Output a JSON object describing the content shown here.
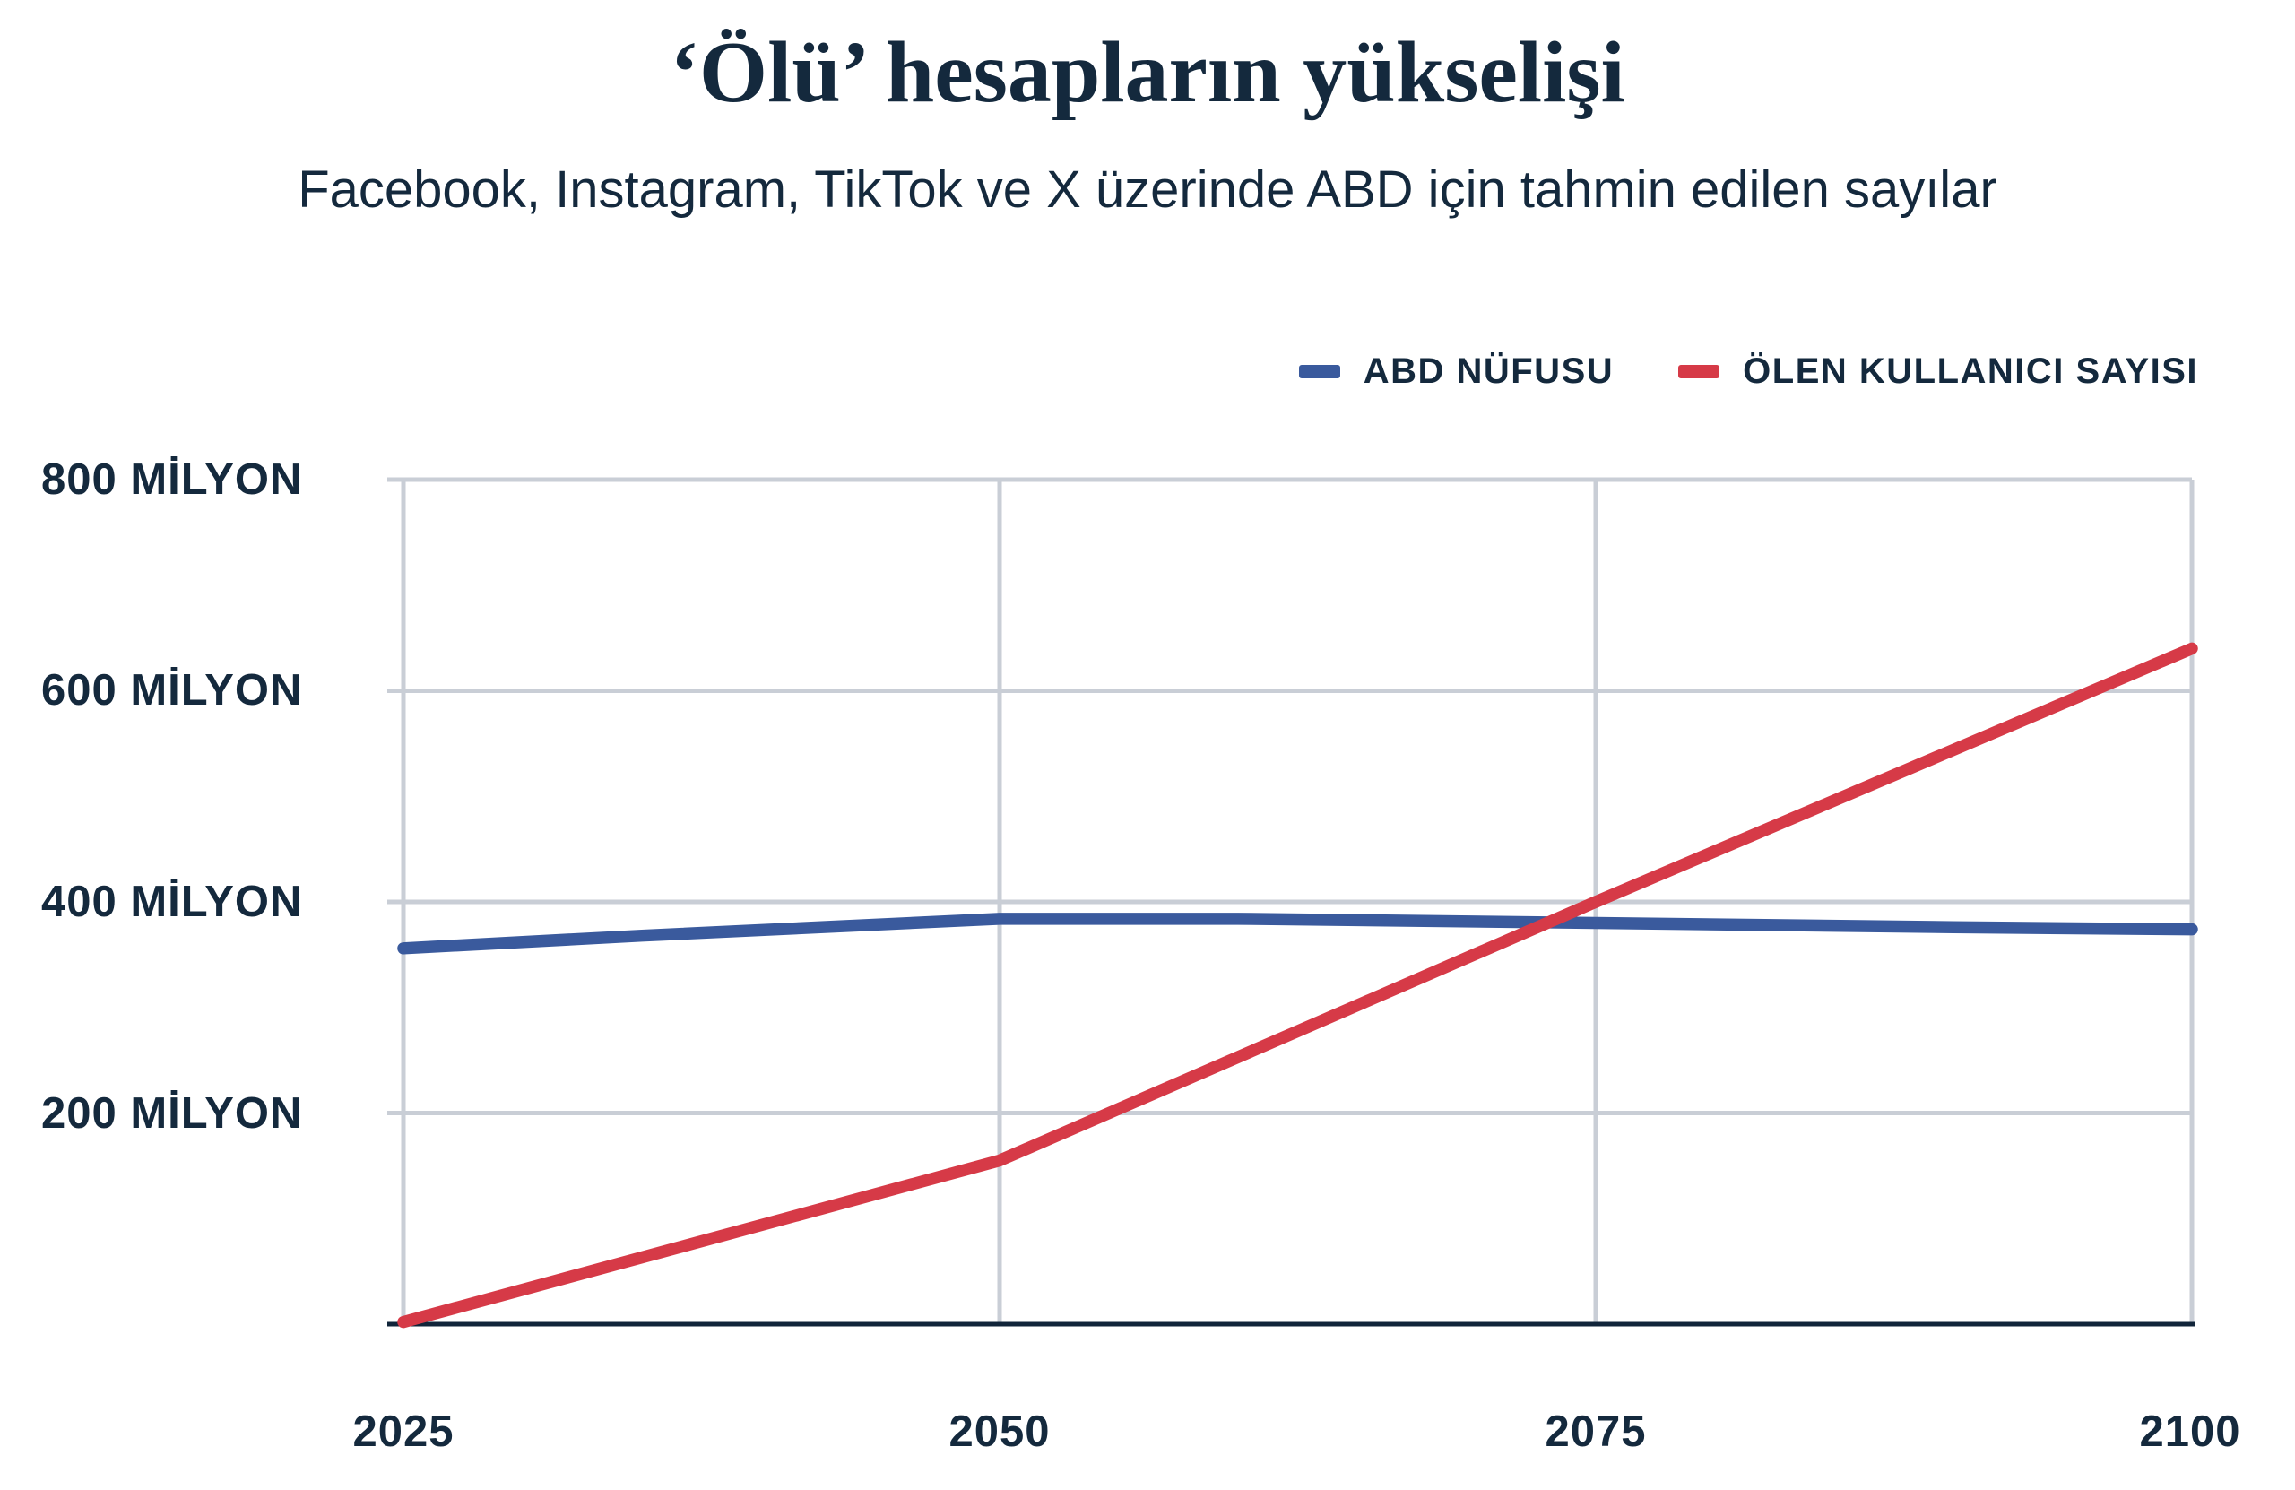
{
  "header": {
    "title": "‘Ölü’ hesapların yükselişi",
    "subtitle": "Facebook, Instagram, TikTok ve X üzerinde ABD için tahmin edilen sayılar"
  },
  "colors": {
    "text": "#14293d",
    "grid": "#c9ced6",
    "axis": "#11253a",
    "series_blue": "#3a5a9d",
    "series_red": "#d63a47",
    "background": "#ffffff"
  },
  "chart_data": {
    "type": "line",
    "title": "‘Ölü’ hesapların yükselişi",
    "subtitle": "Facebook, Instagram, TikTok ve X üzerinde ABD için tahmin edilen sayılar",
    "unit": "milyon",
    "xlim": [
      2025,
      2100
    ],
    "ylim": [
      0,
      800
    ],
    "grid": true,
    "legend_position": "top-right",
    "x_ticks": [
      "2025",
      "2050",
      "2075",
      "2100"
    ],
    "x_tick_years": [
      2025,
      2050,
      2075,
      2100
    ],
    "y_ticks": [
      "800 MİLYON",
      "600 MİLYON",
      "400 MİLYON",
      "200 MİLYON"
    ],
    "y_gridline_values": [
      800,
      600,
      400,
      200
    ],
    "x_gridline_years": [
      2050,
      2075
    ],
    "series": [
      {
        "name": "ABD NÜFUSU",
        "color": "#3a5a9d",
        "points": [
          [
            2025,
            356
          ],
          [
            2035,
            368
          ],
          [
            2050,
            384
          ],
          [
            2060,
            384
          ],
          [
            2075,
            380
          ],
          [
            2090,
            376
          ],
          [
            2100,
            374
          ]
        ]
      },
      {
        "name": "ÖLEN KULLANICI SAYISI",
        "color": "#d63a47",
        "points": [
          [
            2025,
            2
          ],
          [
            2050,
            155
          ],
          [
            2075,
            400
          ],
          [
            2100,
            640
          ]
        ]
      }
    ]
  }
}
